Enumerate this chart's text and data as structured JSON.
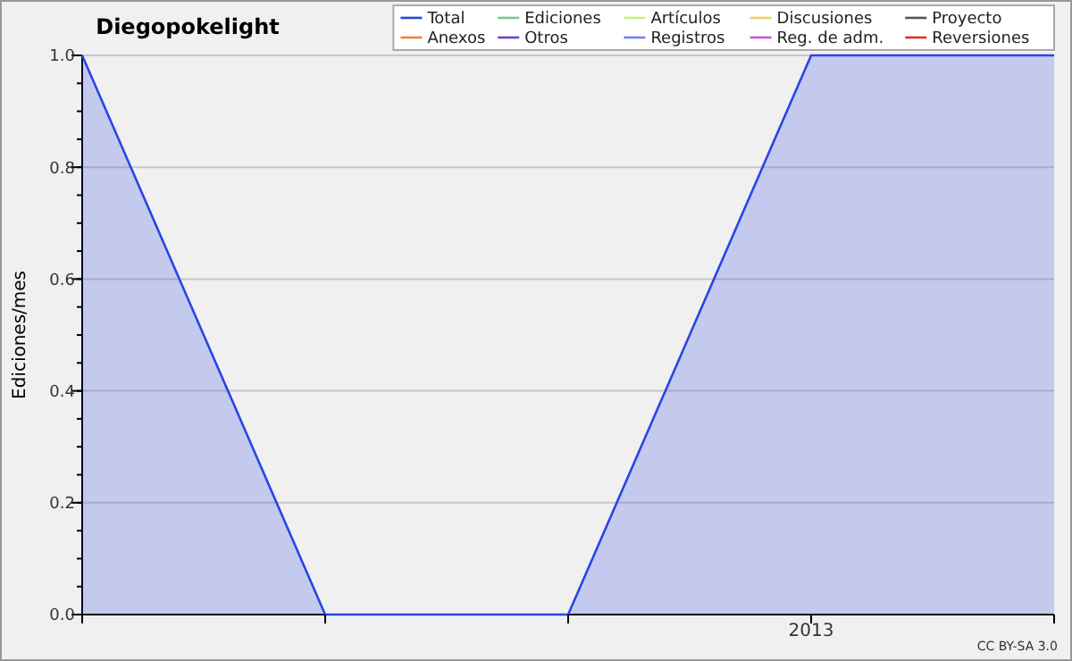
{
  "chart_data": {
    "type": "area",
    "title": "Diegopokelight",
    "ylabel": "Ediciones/mes",
    "categories": [
      null,
      null,
      null,
      "2013",
      null
    ],
    "ylim": [
      0,
      1
    ],
    "yticks": [
      {
        "value": 0,
        "label": "0.0"
      },
      {
        "value": 0.2,
        "label": "0.2"
      },
      {
        "value": 0.4,
        "label": "0.4"
      },
      {
        "value": 0.6,
        "label": "0.6"
      },
      {
        "value": 0.8,
        "label": "0.8"
      },
      {
        "value": 1,
        "label": "1.0"
      }
    ],
    "grid": "y",
    "legend": "top right",
    "line_style": "solid",
    "annotations": [
      "CC BY-SA 3.0"
    ],
    "series": [
      {
        "name": "Total",
        "color": "#2a44e6",
        "values": [
          1,
          0,
          0,
          1,
          1
        ]
      },
      {
        "name": "Ediciones",
        "color": "#7cc48a",
        "values": [
          null,
          null,
          null,
          null,
          null
        ]
      },
      {
        "name": "Artículos",
        "color": "#c8f078",
        "values": [
          null,
          null,
          null,
          null,
          null
        ]
      },
      {
        "name": "Discusiones",
        "color": "#f0d060",
        "values": [
          null,
          null,
          null,
          null,
          null
        ]
      },
      {
        "name": "Proyecto",
        "color": "#555555",
        "values": [
          null,
          null,
          null,
          null,
          null
        ]
      },
      {
        "name": "Anexos",
        "color": "#f08040",
        "values": [
          null,
          null,
          null,
          null,
          null
        ]
      },
      {
        "name": "Otros",
        "color": "#7040d0",
        "values": [
          null,
          null,
          null,
          null,
          null
        ]
      },
      {
        "name": "Registros",
        "color": "#7080f0",
        "values": [
          null,
          null,
          null,
          null,
          null
        ]
      },
      {
        "name": "Reg. de adm.",
        "color": "#d050e0",
        "values": [
          null,
          null,
          null,
          null,
          null
        ]
      },
      {
        "name": "Reversiones",
        "color": "#e03030",
        "values": [
          null,
          null,
          null,
          null,
          null
        ]
      }
    ]
  }
}
